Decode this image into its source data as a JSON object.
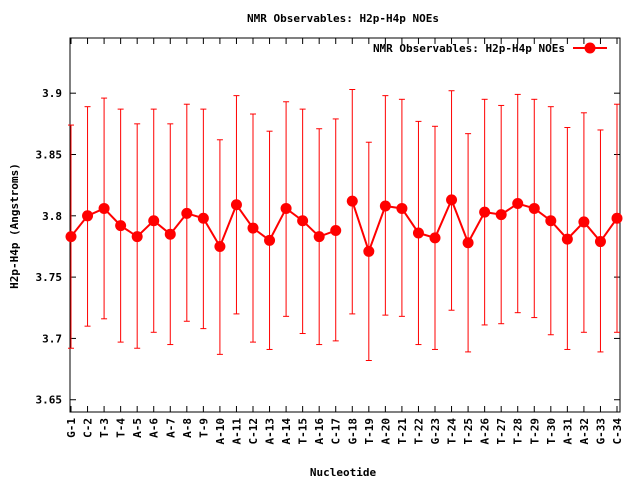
{
  "chart_data": {
    "type": "line",
    "title": "NMR Observables: H2p-H4p NOEs",
    "xlabel": "Nucleotide",
    "ylabel": "H2p-H4p (Angstroms)",
    "ylim": [
      3.64,
      3.945
    ],
    "yticks": [
      "3.65",
      "3.7",
      "3.75",
      "3.8",
      "3.85",
      "3.9"
    ],
    "legend": {
      "position": "top-right",
      "label": "NMR Observables: H2p-H4p NOEs"
    },
    "series_color": "#ff0000",
    "categories": [
      "G-1",
      "C-2",
      "T-3",
      "T-4",
      "A-5",
      "A-6",
      "A-7",
      "A-8",
      "T-9",
      "A-10",
      "A-11",
      "C-12",
      "A-13",
      "A-14",
      "T-15",
      "A-16",
      "C-17",
      "G-18",
      "T-19",
      "A-20",
      "T-21",
      "T-22",
      "G-23",
      "T-24",
      "T-25",
      "A-26",
      "T-27",
      "T-28",
      "T-29",
      "T-30",
      "A-31",
      "A-32",
      "G-33",
      "C-34"
    ],
    "segments": [
      [
        0,
        16
      ],
      [
        17,
        33
      ]
    ],
    "series": [
      {
        "values": [
          3.783,
          3.8,
          3.806,
          3.792,
          3.783,
          3.796,
          3.785,
          3.802,
          3.798,
          3.775,
          3.809,
          3.79,
          3.78,
          3.806,
          3.796,
          3.783,
          3.788,
          3.812,
          3.771,
          3.808,
          3.806,
          3.786,
          3.782,
          3.813,
          3.778,
          3.803,
          3.801,
          3.81,
          3.806,
          3.796,
          3.781,
          3.795,
          3.779,
          3.798
        ],
        "err_low": [
          3.692,
          3.71,
          3.716,
          3.697,
          3.692,
          3.705,
          3.695,
          3.714,
          3.708,
          3.687,
          3.72,
          3.697,
          3.691,
          3.718,
          3.704,
          3.695,
          3.698,
          3.72,
          3.682,
          3.719,
          3.718,
          3.695,
          3.691,
          3.723,
          3.689,
          3.711,
          3.712,
          3.721,
          3.717,
          3.703,
          3.691,
          3.705,
          3.689,
          3.705
        ],
        "err_high": [
          3.874,
          3.889,
          3.896,
          3.887,
          3.875,
          3.887,
          3.875,
          3.891,
          3.887,
          3.862,
          3.898,
          3.883,
          3.869,
          3.893,
          3.887,
          3.871,
          3.879,
          3.903,
          3.86,
          3.898,
          3.895,
          3.877,
          3.873,
          3.902,
          3.867,
          3.895,
          3.89,
          3.899,
          3.895,
          3.889,
          3.872,
          3.884,
          3.87,
          3.891
        ]
      }
    ]
  }
}
